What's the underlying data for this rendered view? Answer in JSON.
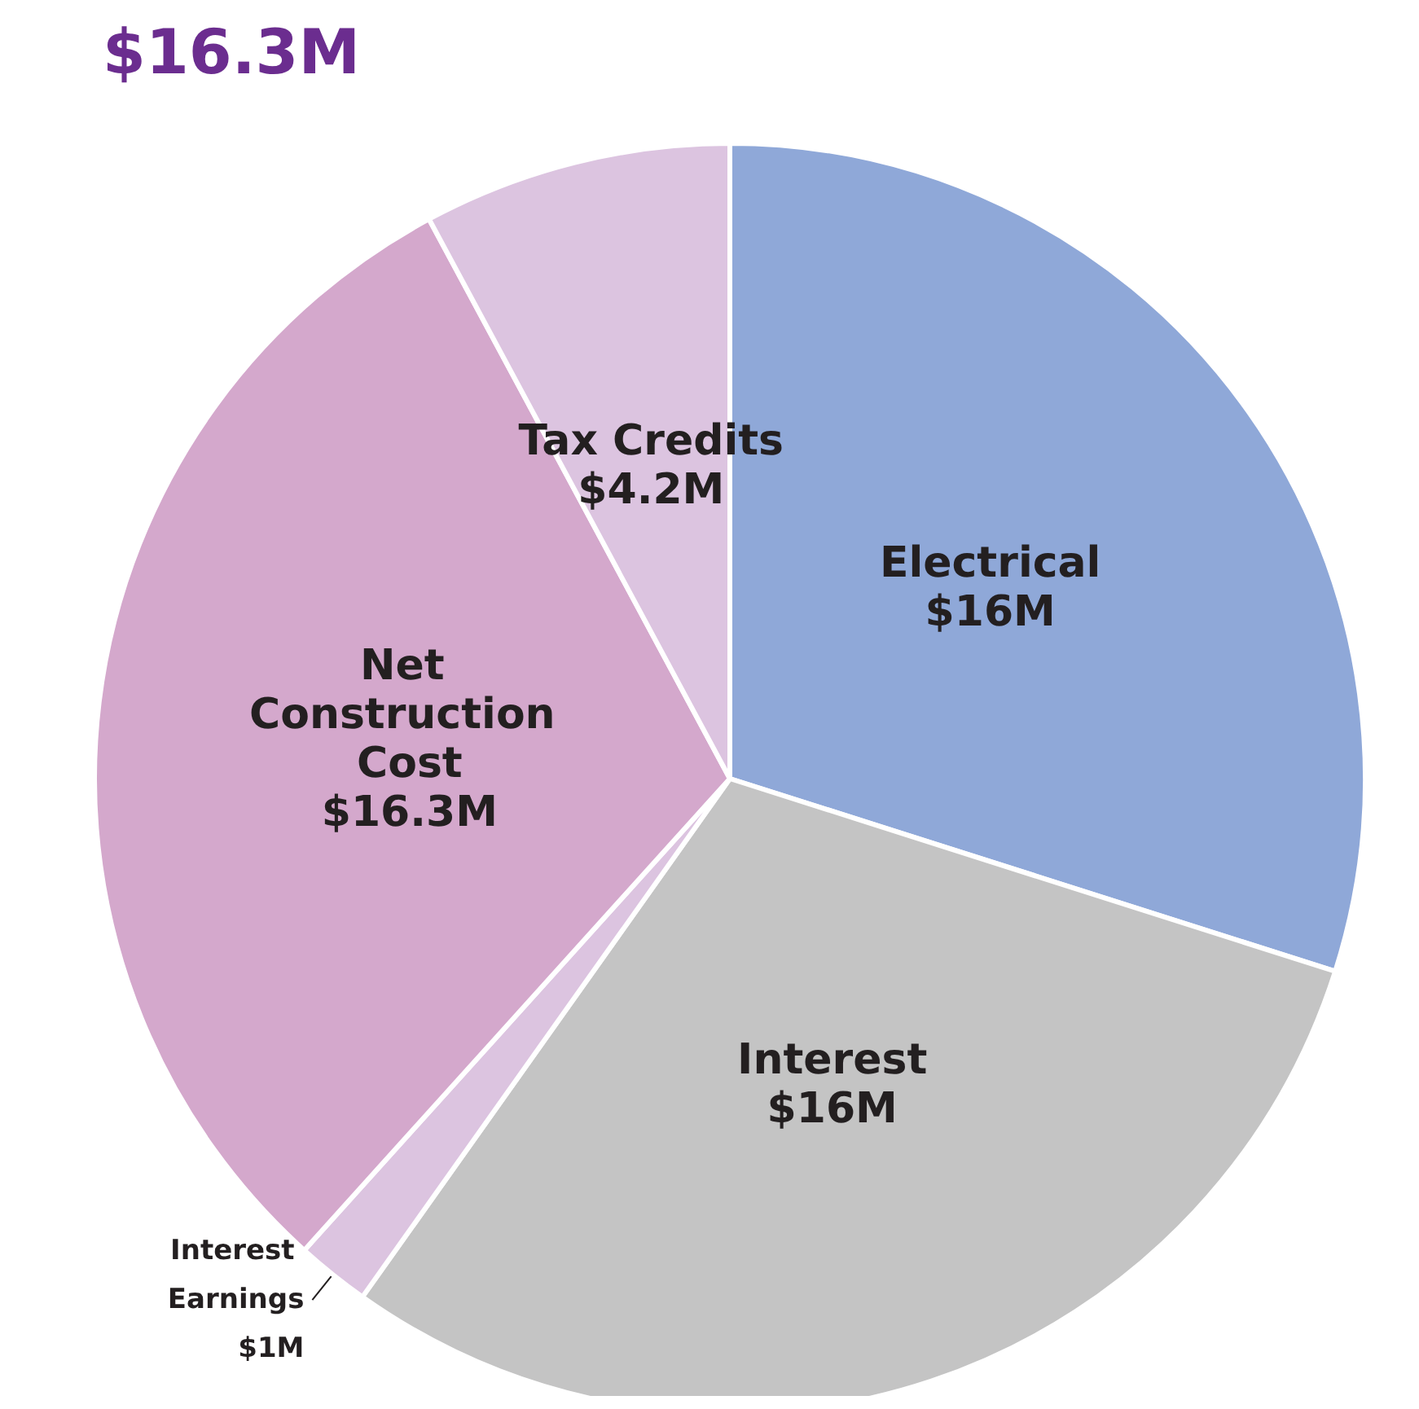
{
  "chart_data": {
    "type": "pie",
    "title": "$16.3M",
    "categories": [
      "Electrical",
      "Interest",
      "Interest Earnings",
      "Net Construction Cost",
      "Tax Credits"
    ],
    "values": [
      16,
      16,
      1,
      16.3,
      4.2
    ],
    "value_labels": [
      "$16M",
      "$16M",
      "$1M",
      "$16.3M",
      "$4.2M"
    ],
    "colors": [
      "#8fa8d8",
      "#c4c4c4",
      "#dcc4e0",
      "#d4a8cc",
      "#dcc4e0"
    ],
    "legend": false
  }
}
